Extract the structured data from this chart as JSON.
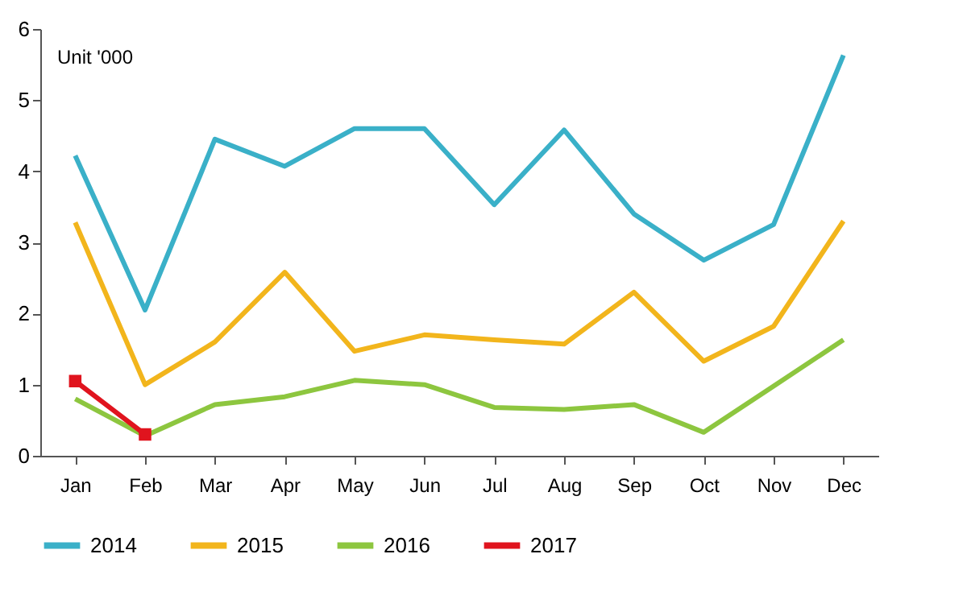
{
  "chart_data": {
    "type": "line",
    "ylabel": "Unit '000",
    "categories": [
      "Jan",
      "Feb",
      "Mar",
      "Apr",
      "May",
      "Jun",
      "Jul",
      "Aug",
      "Sep",
      "Oct",
      "Nov",
      "Dec"
    ],
    "series": [
      {
        "name": "2014",
        "color": "#3ab0c8",
        "values": [
          4.22,
          2.05,
          4.45,
          4.07,
          4.6,
          4.6,
          3.53,
          4.58,
          3.4,
          2.75,
          3.25,
          5.63
        ]
      },
      {
        "name": "2015",
        "color": "#f2b51c",
        "values": [
          3.28,
          1.0,
          1.6,
          2.58,
          1.47,
          1.7,
          1.63,
          1.57,
          2.3,
          1.33,
          1.82,
          3.3
        ]
      },
      {
        "name": "2016",
        "color": "#8dc63f",
        "values": [
          0.8,
          0.28,
          0.72,
          0.83,
          1.06,
          1.0,
          0.68,
          0.65,
          0.72,
          0.33,
          0.98,
          1.63
        ]
      },
      {
        "name": "2017",
        "color": "#e0141e",
        "marker": "square",
        "values": [
          1.05,
          0.3,
          null,
          null,
          null,
          null,
          null,
          null,
          null,
          null,
          null,
          null
        ]
      }
    ],
    "ylim": [
      0,
      6
    ],
    "yticks": [
      0,
      1,
      2,
      3,
      4,
      5,
      6
    ],
    "grid": false,
    "legend": "bottom",
    "line_style": "solid"
  }
}
